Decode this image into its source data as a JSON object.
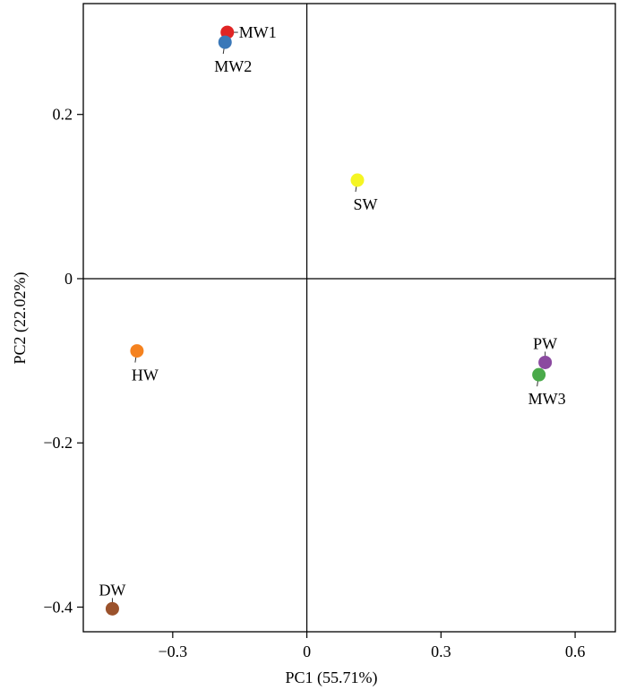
{
  "chart_data": {
    "type": "scatter",
    "xlabel": "PC1 (55.71%)",
    "ylabel": "PC2 (22.02%)",
    "xlim": [
      -0.5,
      0.69
    ],
    "ylim": [
      -0.43,
      0.335
    ],
    "xticks": [
      -0.3,
      0,
      0.3,
      0.6
    ],
    "xtick_labels": [
      "−0.3",
      "0",
      "0.3",
      "0.6"
    ],
    "yticks": [
      -0.4,
      -0.2,
      0,
      0.2
    ],
    "ytick_labels": [
      "−0.4",
      "−0.2",
      "0",
      "0.2"
    ],
    "grid": false,
    "zero_lines": true,
    "points": [
      {
        "label": "MW1",
        "x": -0.178,
        "y": 0.3,
        "color": "#e02424",
        "label_pos": "right"
      },
      {
        "label": "MW2",
        "x": -0.183,
        "y": 0.288,
        "color": "#3a78b8",
        "label_pos": "below"
      },
      {
        "label": "SW",
        "x": 0.113,
        "y": 0.12,
        "color": "#f5f523",
        "label_pos": "below"
      },
      {
        "label": "HW",
        "x": -0.38,
        "y": -0.088,
        "color": "#f5821f",
        "label_pos": "below"
      },
      {
        "label": "PW",
        "x": 0.533,
        "y": -0.102,
        "color": "#8b4aa0",
        "label_pos": "above"
      },
      {
        "label": "MW3",
        "x": 0.519,
        "y": -0.117,
        "color": "#4aaa4a",
        "label_pos": "below"
      },
      {
        "label": "DW",
        "x": -0.435,
        "y": -0.402,
        "color": "#9b522c",
        "label_pos": "above"
      }
    ]
  }
}
